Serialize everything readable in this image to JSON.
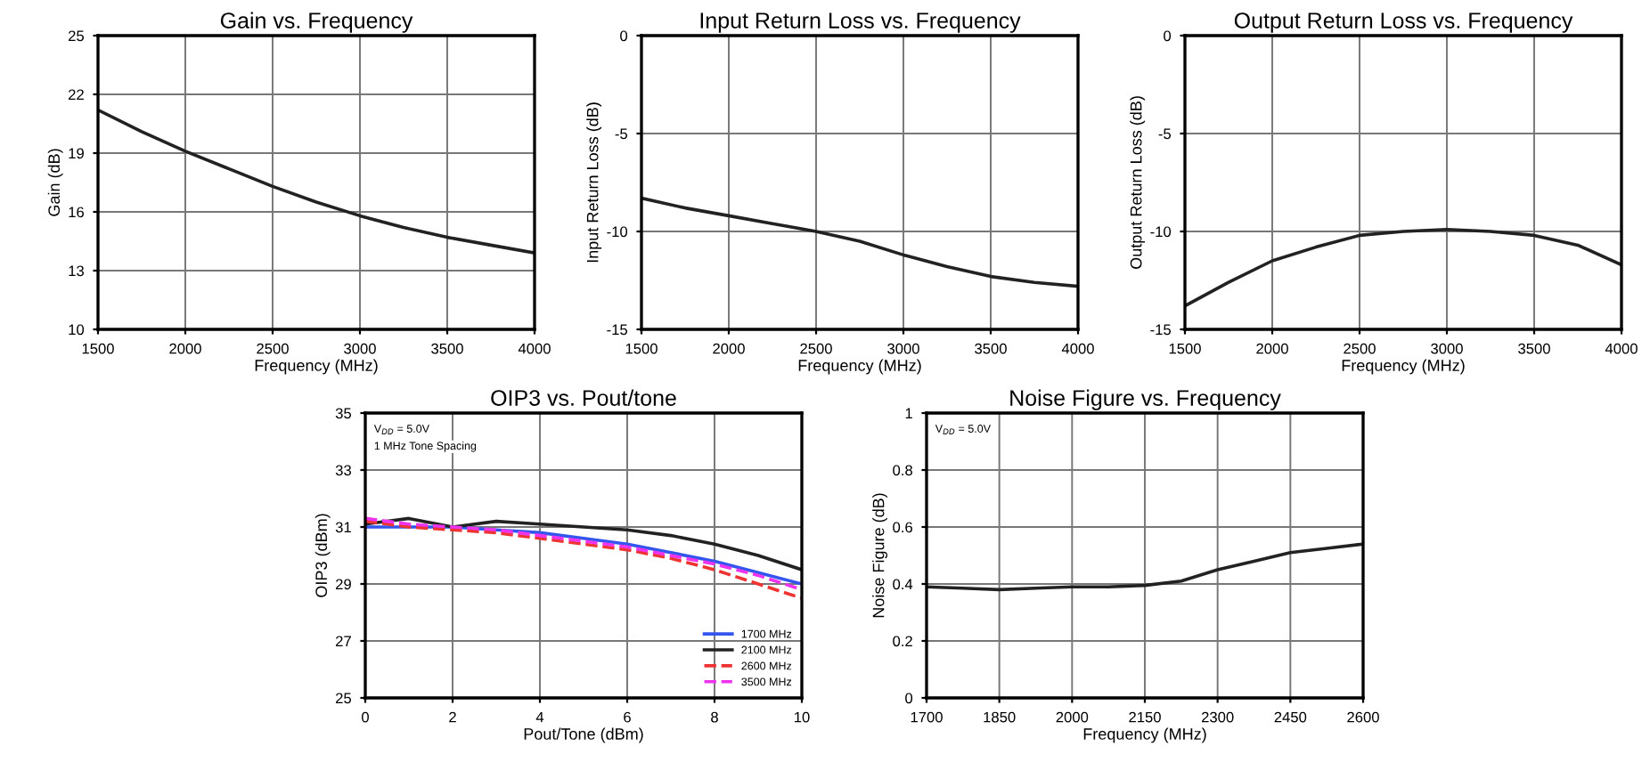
{
  "chart_data": [
    {
      "type": "line",
      "title": "Gain vs. Frequency",
      "xlabel": "Frequency (MHz)",
      "ylabel": "Gain (dB)",
      "xlim": [
        1500,
        4000
      ],
      "xticks": [
        1500,
        2000,
        2500,
        3000,
        3500,
        4000
      ],
      "ylim": [
        10,
        25
      ],
      "yticks": [
        10,
        13,
        16,
        19,
        22,
        25
      ],
      "grid": true,
      "x": [
        1500,
        1750,
        2000,
        2250,
        2500,
        2750,
        3000,
        3250,
        3500,
        3750,
        4000
      ],
      "series": [
        {
          "color": "#222222",
          "values": [
            21.2,
            20.1,
            19.1,
            18.2,
            17.3,
            16.5,
            15.8,
            15.2,
            14.7,
            14.3,
            13.9
          ]
        }
      ]
    },
    {
      "type": "line",
      "title": "Input Return Loss vs. Frequency",
      "xlabel": "Frequency (MHz)",
      "ylabel": "Input Return Loss (dB)",
      "xlim": [
        1500,
        4000
      ],
      "xticks": [
        1500,
        2000,
        2500,
        3000,
        3500,
        4000
      ],
      "ylim": [
        -15,
        0
      ],
      "yticks": [
        -15,
        -10,
        -5,
        0
      ],
      "grid": true,
      "x": [
        1500,
        1750,
        2000,
        2250,
        2500,
        2750,
        3000,
        3250,
        3500,
        3750,
        4000
      ],
      "series": [
        {
          "color": "#222222",
          "values": [
            -8.3,
            -8.8,
            -9.2,
            -9.6,
            -10.0,
            -10.5,
            -11.2,
            -11.8,
            -12.3,
            -12.6,
            -12.8
          ]
        }
      ]
    },
    {
      "type": "line",
      "title": "Output Return Loss vs. Frequency",
      "xlabel": "Frequency (MHz)",
      "ylabel": "Output Return Loss (dB)",
      "xlim": [
        1500,
        4000
      ],
      "xticks": [
        1500,
        2000,
        2500,
        3000,
        3500,
        4000
      ],
      "ylim": [
        -15,
        0
      ],
      "yticks": [
        -15,
        -10,
        -5,
        0
      ],
      "grid": true,
      "x": [
        1500,
        1750,
        2000,
        2250,
        2500,
        2750,
        3000,
        3250,
        3500,
        3750,
        4000
      ],
      "series": [
        {
          "color": "#222222",
          "values": [
            -13.8,
            -12.6,
            -11.5,
            -10.8,
            -10.2,
            -10.0,
            -9.9,
            -10.0,
            -10.2,
            -10.7,
            -11.7
          ]
        }
      ]
    },
    {
      "type": "line",
      "title": "OIP3 vs. Pout/tone",
      "xlabel": "Pout/Tone (dBm)",
      "ylabel": "OIP3 (dBm)",
      "xlim": [
        0,
        10
      ],
      "xticks": [
        0,
        2,
        4,
        6,
        8,
        10
      ],
      "ylim": [
        25,
        35
      ],
      "yticks": [
        25,
        27,
        29,
        31,
        33,
        35
      ],
      "grid": true,
      "legend": "bottom right",
      "annotations": [
        "V$_{DD}$ = 5.0V",
        "1 MHz Tone Spacing"
      ],
      "x": [
        0,
        1,
        2,
        3,
        4,
        5,
        6,
        7,
        8,
        9,
        10
      ],
      "series": [
        {
          "name": "1700 MHz",
          "color": "#3355ee",
          "line_style": "solid",
          "values": [
            31.0,
            31.0,
            31.0,
            30.9,
            30.8,
            30.6,
            30.4,
            30.1,
            29.8,
            29.4,
            29.0
          ]
        },
        {
          "name": "2100 MHz",
          "color": "#222222",
          "line_style": "solid",
          "values": [
            31.1,
            31.3,
            31.0,
            31.2,
            31.1,
            31.0,
            30.9,
            30.7,
            30.4,
            30.0,
            29.5
          ]
        },
        {
          "name": "2600 MHz",
          "color": "#ee3333",
          "line_style": "dashed",
          "values": [
            31.2,
            31.0,
            30.9,
            30.8,
            30.6,
            30.4,
            30.2,
            29.9,
            29.5,
            29.0,
            28.5
          ]
        },
        {
          "name": "3500 MHz",
          "color": "#ee33ee",
          "line_style": "dashed",
          "values": [
            31.3,
            31.1,
            31.0,
            30.9,
            30.7,
            30.5,
            30.3,
            30.0,
            29.7,
            29.3,
            28.8
          ]
        }
      ]
    },
    {
      "type": "line",
      "title": "Noise Figure vs. Frequency",
      "xlabel": "Frequency (MHz)",
      "ylabel": "Noise Figure (dB)",
      "xlim": [
        1700,
        2600
      ],
      "xticks": [
        1700,
        1850,
        2000,
        2150,
        2300,
        2450,
        2600
      ],
      "ylim": [
        0,
        1
      ],
      "yticks": [
        0,
        0.2,
        0.4,
        0.6,
        0.8,
        1
      ],
      "grid": true,
      "annotations": [
        "V$_{DD}$ = 5.0V"
      ],
      "x": [
        1700,
        1775,
        1850,
        1925,
        2000,
        2075,
        2150,
        2225,
        2300,
        2375,
        2450,
        2525,
        2600
      ],
      "series": [
        {
          "color": "#222222",
          "values": [
            0.39,
            0.385,
            0.38,
            0.385,
            0.39,
            0.39,
            0.395,
            0.41,
            0.45,
            0.48,
            0.51,
            0.525,
            0.54
          ]
        }
      ]
    }
  ]
}
